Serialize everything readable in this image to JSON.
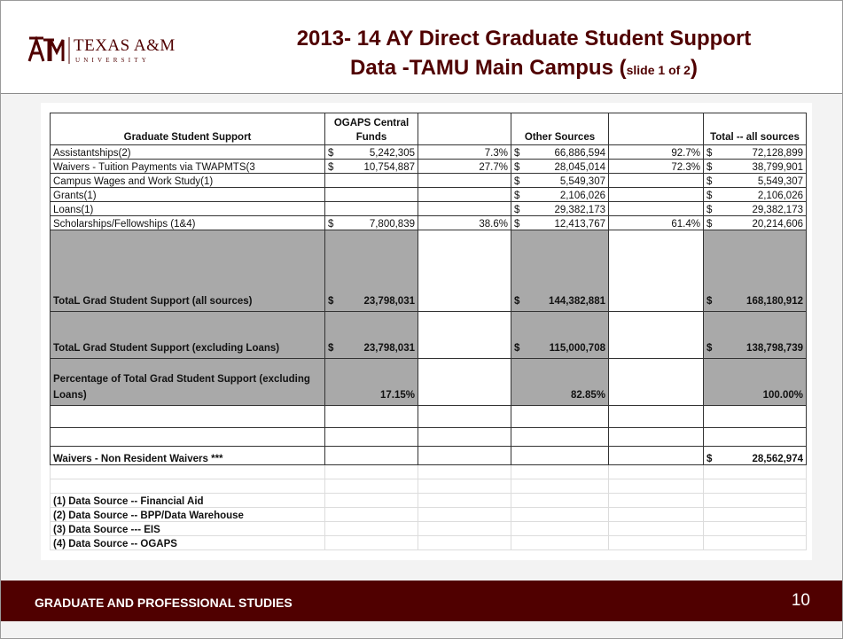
{
  "header": {
    "logo": "TEXAS A&M",
    "logo_sub": "UNIVERSITY",
    "title_line1": "2013- 14 AY Direct Graduate Student Support",
    "title_line2": "Data -TAMU Main Campus (",
    "title_note": "slide 1 of 2",
    "title_end": ")"
  },
  "table": {
    "currency": "$",
    "header": {
      "label": "Graduate Student Support",
      "ogaps": "OGAPS Central Funds",
      "other": "Other Sources",
      "total": "Total -- all sources"
    },
    "rows": [
      {
        "label": "Assistantships(2)",
        "ogaps": "5,242,305",
        "ogaps_pct": "7.3%",
        "other": "66,886,594",
        "other_pct": "92.7%",
        "total": "72,128,899"
      },
      {
        "label": "Waivers - Tuition Payments via TWAPMTS(3",
        "ogaps": "10,754,887",
        "ogaps_pct": "27.7%",
        "other": "28,045,014",
        "other_pct": "72.3%",
        "total": "38,799,901"
      },
      {
        "label": "Campus Wages and Work Study(1)",
        "other": "5,549,307",
        "total": "5,549,307"
      },
      {
        "label": "Grants(1)",
        "other": "2,106,026",
        "total": "2,106,026"
      },
      {
        "label": "Loans(1)",
        "other": "29,382,173",
        "total": "29,382,173"
      },
      {
        "label": "Scholarships/Fellowships (1&4)",
        "ogaps": "7,800,839",
        "ogaps_pct": "38.6%",
        "other": "12,413,767",
        "other_pct": "61.4%",
        "total": "20,214,606"
      }
    ],
    "summary_rows": [
      {
        "label": "TotaL Grad Student Support (all sources)",
        "ogaps": "23,798,031",
        "other": "144,382,881",
        "total": "168,180,912"
      },
      {
        "label": "TotaL Grad Student Support (excluding Loans)",
        "ogaps": "23,798,031",
        "other": "115,000,708",
        "total": "138,798,739"
      },
      {
        "label": "Percentage of Total  Grad Student Support (excluding Loans)",
        "ogaps": "17.15%",
        "other": "82.85%",
        "total": "100.00%"
      }
    ],
    "extra_rows": [
      {
        "label": "Waivers - Non Resident Waivers ***",
        "total": "28,562,974"
      }
    ],
    "notes": [
      "(1) Data Source -- Financial Aid",
      "(2) Data Source -- BPP/Data Warehouse",
      "(3) Data Source --- EIS",
      "(4) Data Source -- OGAPS"
    ]
  },
  "footer": {
    "org": "GRADUATE AND PROFESSIONAL STUDIES",
    "page": "10"
  }
}
